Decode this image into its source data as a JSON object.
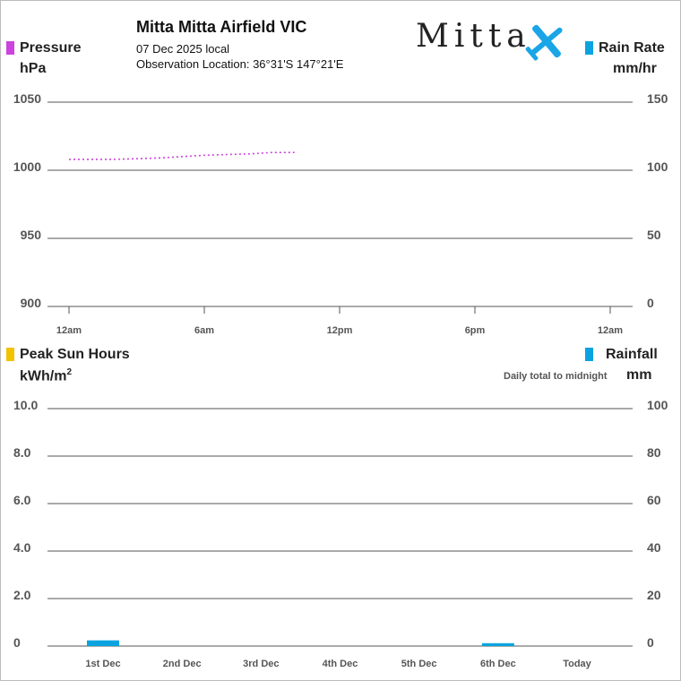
{
  "header": {
    "station": "Mitta Mitta Airfield VIC",
    "date_line": "07 Dec 2025 local",
    "location_line": "Observation Location: 36°31'S 147°21'E",
    "logo_text": "Mitta"
  },
  "colors": {
    "pressure": "#cc44dd",
    "rain": "#0aa3e0",
    "sun": "#f2c200",
    "grid": "#555555",
    "logo": "#1aa5e6"
  },
  "icons": [
    "airplane-icon"
  ],
  "chart_data": [
    {
      "type": "line",
      "left_axis": {
        "label": "Pressure",
        "unit": "hPa",
        "ylim": [
          900,
          1050
        ],
        "ticks": [
          "900",
          "950",
          "1000",
          "1050"
        ]
      },
      "right_axis": {
        "label": "Rain Rate",
        "unit": "mm/hr",
        "ylim": [
          0,
          150
        ],
        "ticks": [
          "0",
          "50",
          "100",
          "150"
        ]
      },
      "x_ticks": [
        "12am",
        "6am",
        "12pm",
        "6pm",
        "12am"
      ],
      "xlim_hours": [
        0,
        24
      ],
      "series": [
        {
          "name": "Pressure",
          "axis": "left",
          "style": "dotted",
          "x": [
            0,
            1,
            2,
            3,
            4,
            5,
            6,
            7,
            8,
            9,
            10
          ],
          "y": [
            1008,
            1008,
            1008,
            1008.5,
            1009,
            1010,
            1011,
            1011.5,
            1012,
            1013,
            1013
          ]
        },
        {
          "name": "Rain Rate",
          "axis": "right",
          "x": [],
          "y": []
        }
      ],
      "grid": true
    },
    {
      "type": "bar",
      "left_axis": {
        "label": "Peak Sun Hours",
        "unit": "kWh/m",
        "unit_sup": "2",
        "ylim": [
          0,
          10
        ],
        "ticks": [
          "0",
          "2.0",
          "4.0",
          "6.0",
          "8.0",
          "10.0"
        ]
      },
      "right_axis": {
        "label": "Rainfall",
        "note": "Daily total to midnight",
        "unit": "mm",
        "ylim": [
          0,
          100
        ],
        "ticks": [
          "0",
          "20",
          "40",
          "60",
          "80",
          "100"
        ]
      },
      "categories": [
        "1st Dec",
        "2nd Dec",
        "3rd Dec",
        "4th Dec",
        "5th Dec",
        "6th Dec",
        "Today"
      ],
      "series": [
        {
          "name": "Peak Sun Hours",
          "axis": "left",
          "values": [
            null,
            null,
            null,
            null,
            null,
            null,
            null
          ]
        },
        {
          "name": "Rainfall",
          "axis": "right",
          "values": [
            2.4,
            0,
            0,
            0,
            0,
            1.2,
            null
          ]
        }
      ],
      "grid": true
    }
  ]
}
